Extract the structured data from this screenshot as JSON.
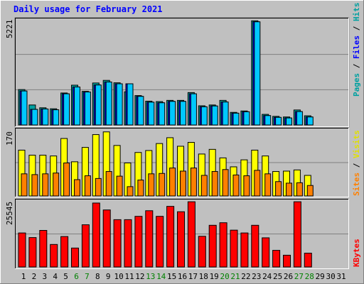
{
  "title": "Daily usage for February 2021",
  "chart_data": [
    {
      "type": "bar",
      "panel": "pages-files-hits",
      "ymax_label": "5221",
      "legend": [
        "Pages",
        "Files",
        "Hits"
      ],
      "colors": {
        "Pages": "#00a0a0",
        "Files": "#0000ff",
        "Hits": "#00c8ff"
      },
      "x": [
        1,
        2,
        3,
        4,
        5,
        6,
        7,
        8,
        9,
        10,
        11,
        12,
        13,
        14,
        15,
        16,
        17,
        18,
        19,
        20,
        21,
        22,
        23,
        24,
        25,
        26,
        27,
        28,
        29,
        30,
        31
      ],
      "series": [
        {
          "name": "Hits",
          "values": [
            1700,
            780,
            800,
            760,
            1560,
            1900,
            1650,
            2000,
            2150,
            2060,
            2060,
            1430,
            1140,
            1110,
            1180,
            1180,
            1560,
            910,
            950,
            1150,
            590,
            660,
            5160,
            470,
            380,
            350,
            670,
            400,
            0,
            0,
            0
          ]
        },
        {
          "name": "Files",
          "values": [
            1700,
            780,
            800,
            760,
            1560,
            1900,
            1650,
            2000,
            2150,
            2060,
            2060,
            1430,
            1140,
            1110,
            1180,
            1180,
            1560,
            910,
            950,
            1150,
            590,
            660,
            5160,
            470,
            380,
            350,
            670,
            400,
            0,
            0,
            0
          ]
        },
        {
          "name": "Pages",
          "values": [
            1770,
            1000,
            860,
            810,
            1600,
            1990,
            1680,
            2100,
            2230,
            2110,
            1660,
            1470,
            1190,
            1170,
            1230,
            1230,
            1620,
            960,
            1000,
            1230,
            630,
            700,
            5210,
            530,
            430,
            400,
            750,
            460,
            0,
            0,
            0
          ]
        }
      ]
    },
    {
      "type": "bar",
      "panel": "visits-sites",
      "ymax_label": "170",
      "legend": [
        "Sites",
        "Visits"
      ],
      "colors": {
        "Visits": "#ffff00",
        "Sites": "#ff8000"
      },
      "x": [
        1,
        2,
        3,
        4,
        5,
        6,
        7,
        8,
        9,
        10,
        11,
        12,
        13,
        14,
        15,
        16,
        17,
        18,
        19,
        20,
        21,
        22,
        23,
        24,
        25,
        26,
        27,
        28,
        29,
        30,
        31
      ],
      "series": [
        {
          "name": "Visits",
          "values": [
            118,
            105,
            105,
            103,
            148,
            88,
            125,
            158,
            165,
            130,
            85,
            112,
            117,
            135,
            150,
            128,
            138,
            108,
            120,
            98,
            75,
            93,
            118,
            103,
            63,
            64,
            67,
            53,
            0,
            0,
            0
          ]
        },
        {
          "name": "Sites",
          "values": [
            57,
            55,
            57,
            59,
            85,
            42,
            52,
            45,
            63,
            51,
            24,
            41,
            57,
            58,
            72,
            64,
            72,
            53,
            63,
            68,
            54,
            52,
            66,
            57,
            37,
            33,
            34,
            27,
            0,
            0,
            0
          ]
        }
      ]
    },
    {
      "type": "bar",
      "panel": "kbytes",
      "ymax_label": "25545",
      "legend": [
        "KBytes"
      ],
      "colors": {
        "KBytes": "#ff0000"
      },
      "x": [
        1,
        2,
        3,
        4,
        5,
        6,
        7,
        8,
        9,
        10,
        11,
        12,
        13,
        14,
        15,
        16,
        17,
        18,
        19,
        20,
        21,
        22,
        23,
        24,
        25,
        26,
        27,
        28,
        29,
        30,
        31
      ],
      "series": [
        {
          "name": "KBytes",
          "values": [
            13300,
            11500,
            14300,
            8800,
            11900,
            7400,
            16500,
            25000,
            22300,
            18500,
            18500,
            19800,
            22000,
            19800,
            23700,
            21600,
            25500,
            12000,
            16300,
            17300,
            14400,
            13300,
            16300,
            11400,
            6500,
            4600,
            25500,
            5400,
            0,
            0,
            0
          ]
        }
      ]
    }
  ],
  "x_labels": [
    "1",
    "2",
    "3",
    "4",
    "5",
    "6",
    "7",
    "8",
    "9",
    "10",
    "11",
    "12",
    "13",
    "14",
    "15",
    "16",
    "17",
    "18",
    "19",
    "20",
    "21",
    "22",
    "23",
    "24",
    "25",
    "26",
    "27",
    "28",
    "29",
    "30",
    "31"
  ],
  "weekend_days": [
    6,
    7,
    13,
    14,
    20,
    21,
    27,
    28
  ]
}
